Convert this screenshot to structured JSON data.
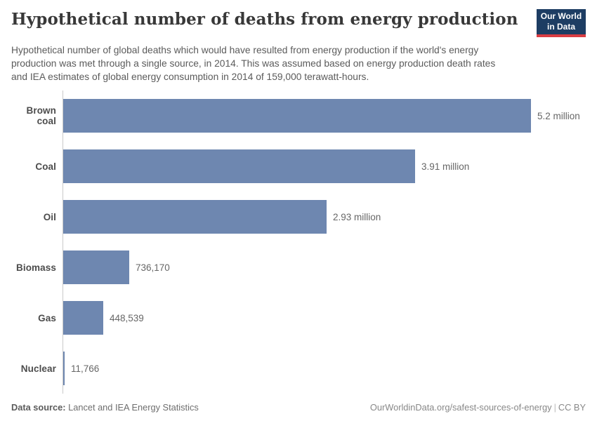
{
  "header": {
    "title": "Hypothetical number of deaths from energy production",
    "subtitle": "Hypothetical number of global deaths which would have resulted from energy production if the world's energy production was met through a single source, in 2014. This was assumed based on energy production death rates and IEA estimates of global energy consumption in 2014 of 159,000 terawatt-hours.",
    "logo": {
      "line1": "Our World",
      "line2": "in Data",
      "bg_color": "#1d3d63",
      "accent_color": "#d93d43"
    }
  },
  "chart_data": {
    "type": "bar",
    "orientation": "horizontal",
    "title": "Hypothetical number of deaths from energy production",
    "categories": [
      "Brown coal",
      "Coal",
      "Oil",
      "Biomass",
      "Gas",
      "Nuclear"
    ],
    "values": [
      5200000,
      3910000,
      2930000,
      736170,
      448539,
      11766
    ],
    "value_labels": [
      "5.2 million",
      "3.91 million",
      "2.93 million",
      "736,170",
      "448,539",
      "11,766"
    ],
    "xlabel": "",
    "ylabel": "",
    "xlim": [
      0,
      5200000
    ],
    "grid": false,
    "legend": "none",
    "bar_color": "#6e87b0",
    "axis_color": "#c9c9c9"
  },
  "footer": {
    "data_source_label": "Data source:",
    "data_source_value": " Lancet and IEA Energy Statistics",
    "link": "OurWorldinData.org/safest-sources-of-energy",
    "separator": "|",
    "license": "CC BY"
  }
}
